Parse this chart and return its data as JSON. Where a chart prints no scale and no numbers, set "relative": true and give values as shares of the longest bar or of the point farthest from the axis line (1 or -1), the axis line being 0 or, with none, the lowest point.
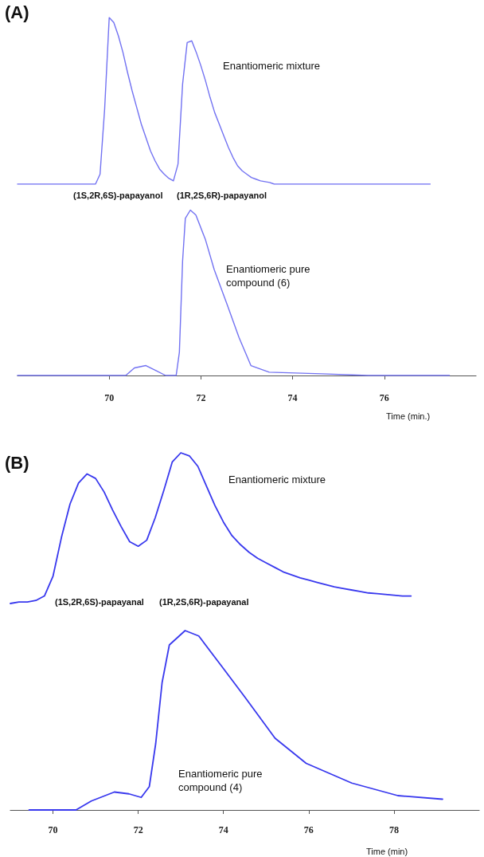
{
  "chart_data": [
    {
      "type": "line",
      "title": "(A)",
      "relative": true,
      "color": "#7272f2",
      "marker": "none",
      "tick_labels": false,
      "annotations": [
        "Enantiomeric mixture",
        "(1S,2R,6S)-papayanol",
        "(1R,2S,6R)-papayanol"
      ],
      "categories": [
        null,
        null,
        null,
        null,
        null,
        null,
        null,
        null,
        null,
        null,
        null,
        null,
        null,
        null,
        null,
        null,
        null,
        null,
        null,
        null,
        null,
        null,
        null,
        null,
        null,
        null,
        null,
        null,
        null,
        null,
        null,
        null,
        null,
        null,
        null,
        null,
        null,
        null,
        null,
        null,
        null,
        null,
        null,
        null,
        null,
        null,
        null,
        null,
        null,
        null,
        null,
        null,
        null,
        null,
        null,
        null,
        null,
        null,
        null,
        null,
        null,
        null,
        null,
        null,
        null,
        null,
        null,
        null,
        null,
        null,
        null,
        null,
        null,
        null,
        null,
        null,
        null,
        null,
        null,
        null,
        null,
        null,
        null,
        null,
        null,
        null,
        null,
        null,
        null,
        null,
        null
      ],
      "values": [
        0,
        0,
        0,
        0,
        0,
        0,
        0,
        0,
        0,
        0,
        0,
        0,
        0,
        0,
        0,
        0,
        0,
        0,
        0.06,
        0.45,
        1,
        0.97,
        0.89,
        0.79,
        0.67,
        0.56,
        0.46,
        0.36,
        0.28,
        0.2,
        0.14,
        0.09,
        0.06,
        0.035,
        0.02,
        0.12,
        0.6,
        0.85,
        0.86,
        0.79,
        0.71,
        0.62,
        0.52,
        0.43,
        0.36,
        0.29,
        0.22,
        0.16,
        0.11,
        0.08,
        0.06,
        0.04,
        0.03,
        0.02,
        0.015,
        0.01,
        0,
        0,
        0,
        0,
        0,
        0,
        0,
        0,
        0,
        0,
        0,
        0,
        0,
        0,
        0,
        0,
        0,
        0,
        0,
        0,
        0,
        0,
        0,
        0,
        0,
        0,
        0,
        0,
        0,
        0,
        0,
        0,
        0,
        0,
        0
      ]
    },
    {
      "type": "line",
      "relative": true,
      "color": "#7272f2",
      "marker": "none",
      "xlabel": "Time (min.)",
      "xlim": [
        68,
        78
      ],
      "xticks": [
        70,
        72,
        74,
        76
      ],
      "annotations": [
        "Enantiomeric pure\ncompound (6)"
      ],
      "x": [
        68,
        70.36,
        70.55,
        70.8,
        71.02,
        71.23,
        71.46,
        71.53,
        71.6,
        71.66,
        71.77,
        71.89,
        72.1,
        72.29,
        72.57,
        72.83,
        73.09,
        73.49,
        74.63,
        75.64,
        77.42
      ],
      "values": [
        0,
        0,
        0.046,
        0.06,
        0.03,
        0,
        0,
        0.14,
        0.69,
        0.95,
        1,
        0.97,
        0.82,
        0.64,
        0.43,
        0.23,
        0.06,
        0.02,
        0.01,
        0,
        0
      ]
    },
    {
      "type": "line",
      "title": "(B)",
      "relative": true,
      "color": "#3838ee",
      "marker": "none",
      "tick_labels": false,
      "annotations": [
        "Enantiomeric mixture",
        "(1S,2R,6S)-papayanal",
        "(1R,2S,6R)-papayanal"
      ],
      "categories": [
        null,
        null,
        null,
        null,
        null,
        null,
        null,
        null,
        null,
        null,
        null,
        null,
        null,
        null,
        null,
        null,
        null,
        null,
        null,
        null,
        null,
        null,
        null,
        null,
        null,
        null,
        null,
        null,
        null,
        null,
        null,
        null,
        null,
        null,
        null,
        null,
        null,
        null,
        null,
        null,
        null,
        null,
        null,
        null,
        null,
        null,
        null,
        null
      ],
      "values": [
        0,
        0.01,
        0.01,
        0.02,
        0.05,
        0.18,
        0.44,
        0.66,
        0.8,
        0.86,
        0.83,
        0.74,
        0.62,
        0.51,
        0.41,
        0.38,
        0.42,
        0.57,
        0.75,
        0.94,
        1,
        0.98,
        0.91,
        0.78,
        0.65,
        0.54,
        0.45,
        0.39,
        0.34,
        0.3,
        0.27,
        0.24,
        0.21,
        0.19,
        0.17,
        0.155,
        0.14,
        0.125,
        0.11,
        0.1,
        0.09,
        0.08,
        0.07,
        0.065,
        0.06,
        0.055,
        0.05,
        0.05
      ]
    },
    {
      "type": "line",
      "relative": true,
      "color": "#3838ee",
      "marker": "none",
      "xlabel": "Time (min)",
      "xlim": [
        69,
        80
      ],
      "xticks": [
        70,
        72,
        74,
        76,
        78
      ],
      "annotations": [
        "Enantiomeric pure\ncompound (4)"
      ],
      "x": [
        69.44,
        70.54,
        70.9,
        71.44,
        71.78,
        72.07,
        72.26,
        72.41,
        72.56,
        72.73,
        73.1,
        73.42,
        73.93,
        74.5,
        75.21,
        75.94,
        77.01,
        78.09,
        79.14
      ],
      "values": [
        0,
        0,
        0.05,
        0.1,
        0.09,
        0.07,
        0.13,
        0.37,
        0.71,
        0.92,
        1,
        0.97,
        0.81,
        0.63,
        0.4,
        0.26,
        0.15,
        0.08,
        0.06
      ]
    }
  ]
}
